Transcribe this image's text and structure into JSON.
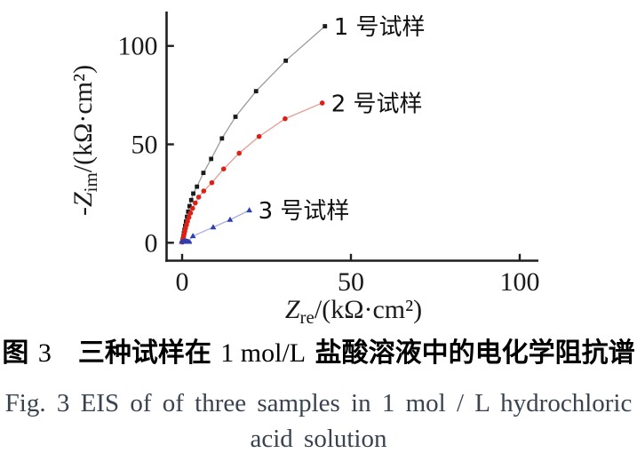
{
  "figure": {
    "caption_cn_parts": [
      {
        "t": "图 "
      },
      {
        "t": "3"
      },
      {
        "t": "　三种试样在 "
      },
      {
        "t": "1 mol/L"
      },
      {
        "t": " 盐酸溶液中的电化学阻抗谱"
      }
    ],
    "caption_en_line1": "Fig. 3  EIS of of three samples in 1 mol / L hydrochloric",
    "caption_en_line2": "acid solution"
  },
  "chart_data": {
    "type": "scatter",
    "title": "",
    "grid": false,
    "legend_position": "labels-at-curve-ends",
    "x_axis": {
      "symbol": "Z",
      "subscript": "re",
      "unit": "/(kΩ·cm²)",
      "ticks": [
        0,
        50,
        100
      ],
      "range": [
        0,
        108
      ]
    },
    "y_axis": {
      "symbol": "-Z",
      "subscript": "im",
      "unit": "/(kΩ·cm²)",
      "ticks": [
        0,
        50,
        100
      ],
      "range": [
        0,
        117
      ]
    },
    "series": [
      {
        "name": "sample-1",
        "label": "1 号试样",
        "marker": "square",
        "marker_color": "#1a1a1a",
        "line_color": "#9a9a9a",
        "points": [
          [
            0.1,
            0.8
          ],
          [
            0.2,
            1.8
          ],
          [
            0.35,
            3.2
          ],
          [
            0.5,
            4.8
          ],
          [
            0.7,
            6.6
          ],
          [
            0.9,
            8.6
          ],
          [
            1.15,
            10.8
          ],
          [
            1.45,
            13.2
          ],
          [
            1.8,
            15.8
          ],
          [
            2.2,
            18.6
          ],
          [
            2.7,
            21.7
          ],
          [
            3.3,
            25.0
          ],
          [
            4.4,
            28.5
          ],
          [
            6.3,
            35.5
          ],
          [
            8.6,
            42.6
          ],
          [
            11.8,
            53.0
          ],
          [
            15.8,
            64.0
          ],
          [
            21.9,
            77.0
          ],
          [
            30.7,
            92.5
          ],
          [
            42.3,
            110.0
          ]
        ]
      },
      {
        "name": "sample-2",
        "label": "2 号试样",
        "marker": "circle",
        "marker_color": "#dd2015",
        "line_color": "#e59a92",
        "points": [
          [
            0.05,
            0.3
          ],
          [
            0.1,
            0.7
          ],
          [
            0.2,
            1.4
          ],
          [
            0.3,
            2.2
          ],
          [
            0.45,
            3.3
          ],
          [
            0.6,
            4.5
          ],
          [
            0.8,
            5.9
          ],
          [
            1.0,
            7.4
          ],
          [
            1.3,
            9.1
          ],
          [
            1.6,
            10.9
          ],
          [
            2.0,
            12.9
          ],
          [
            2.5,
            15.1
          ],
          [
            3.1,
            17.5
          ],
          [
            3.9,
            20.2
          ],
          [
            4.9,
            23.2
          ],
          [
            6.4,
            26.3
          ],
          [
            8.8,
            30.5
          ],
          [
            12.3,
            37.5
          ],
          [
            16.9,
            45.5
          ],
          [
            22.8,
            54.0
          ],
          [
            30.5,
            63.0
          ],
          [
            41.5,
            71.0
          ]
        ]
      },
      {
        "name": "sample-3",
        "label": "3 号试样",
        "marker": "triangle",
        "marker_color": "#2f3fae",
        "line_color": "#a9aedd",
        "points": [
          [
            3.2,
            3.4
          ],
          [
            9.2,
            7.9
          ],
          [
            14.2,
            11.7
          ],
          [
            19.9,
            16.5
          ]
        ],
        "line_points": [
          [
            1.8,
            0.6
          ],
          [
            3.2,
            3.4
          ],
          [
            9.2,
            7.9
          ],
          [
            14.2,
            11.7
          ],
          [
            19.9,
            16.5
          ]
        ],
        "hf_loop": {
          "cx": 1.0,
          "cy": 0,
          "rx": 1.9,
          "ry": 2.7
        }
      }
    ]
  }
}
